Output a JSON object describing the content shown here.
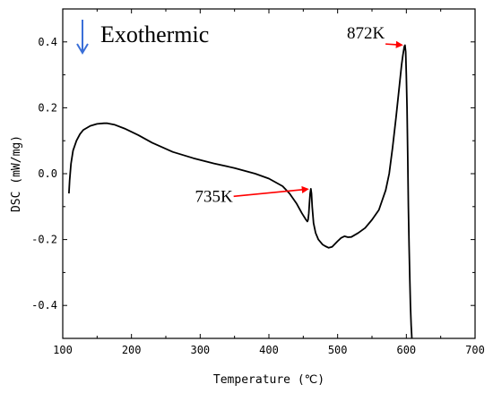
{
  "chart_data": {
    "type": "line",
    "title": "",
    "xlabel": "Temperature (℃)",
    "ylabel": "DSC (mW/mg)",
    "xlim": [
      100,
      700
    ],
    "ylim": [
      -0.5,
      0.5
    ],
    "xticks": [
      100,
      200,
      300,
      400,
      500,
      600,
      700
    ],
    "yticks": [
      -0.4,
      -0.2,
      0.0,
      0.2,
      0.4
    ],
    "xtick_labels": [
      "100",
      "200",
      "300",
      "400",
      "500",
      "600",
      "700"
    ],
    "ytick_labels": [
      "-0.4",
      "-0.2",
      "0.0",
      "0.2",
      "0.4"
    ],
    "grid": false,
    "line_color": "#000000",
    "series": [
      {
        "x": [
          109,
          110,
          112,
          115,
          120,
          125,
          130,
          140,
          150,
          160,
          165,
          175,
          190,
          210,
          230,
          260,
          290,
          320,
          350,
          380,
          400,
          420,
          430,
          440,
          448,
          454,
          456,
          457,
          458,
          459,
          460,
          461,
          462,
          463,
          465,
          468,
          472,
          478,
          482,
          487,
          492,
          500,
          505,
          510,
          515,
          520,
          530,
          540,
          550,
          560,
          570,
          575,
          580,
          585,
          590,
          593,
          595,
          597,
          598,
          599,
          600,
          601,
          602,
          603,
          604,
          605,
          606,
          607,
          608
        ],
        "y": [
          -0.06,
          -0.02,
          0.03,
          0.07,
          0.1,
          0.12,
          0.133,
          0.145,
          0.151,
          0.153,
          0.153,
          0.149,
          0.137,
          0.117,
          0.094,
          0.066,
          0.047,
          0.031,
          0.017,
          0.0,
          -0.015,
          -0.038,
          -0.06,
          -0.09,
          -0.12,
          -0.14,
          -0.145,
          -0.14,
          -0.12,
          -0.09,
          -0.06,
          -0.046,
          -0.06,
          -0.1,
          -0.15,
          -0.18,
          -0.2,
          -0.215,
          -0.22,
          -0.225,
          -0.222,
          -0.205,
          -0.195,
          -0.19,
          -0.193,
          -0.192,
          -0.18,
          -0.165,
          -0.14,
          -0.11,
          -0.05,
          0.0,
          0.08,
          0.17,
          0.27,
          0.33,
          0.36,
          0.385,
          0.39,
          0.37,
          0.3,
          0.2,
          0.05,
          -0.1,
          -0.22,
          -0.32,
          -0.4,
          -0.46,
          -0.5
        ]
      }
    ],
    "annotations": [
      {
        "label": "735K",
        "x": 461,
        "y": -0.046,
        "text_x": 320,
        "text_y": -0.085,
        "arrow_color": "#ff0000"
      },
      {
        "label": "872K",
        "x": 598,
        "y": 0.39,
        "text_x": 541,
        "text_y": 0.41,
        "arrow_color": "#ff0000"
      }
    ],
    "legend_note": {
      "text": "Exothermic",
      "icon": "down-arrow-icon",
      "icon_color": "#3a6fd8"
    }
  }
}
